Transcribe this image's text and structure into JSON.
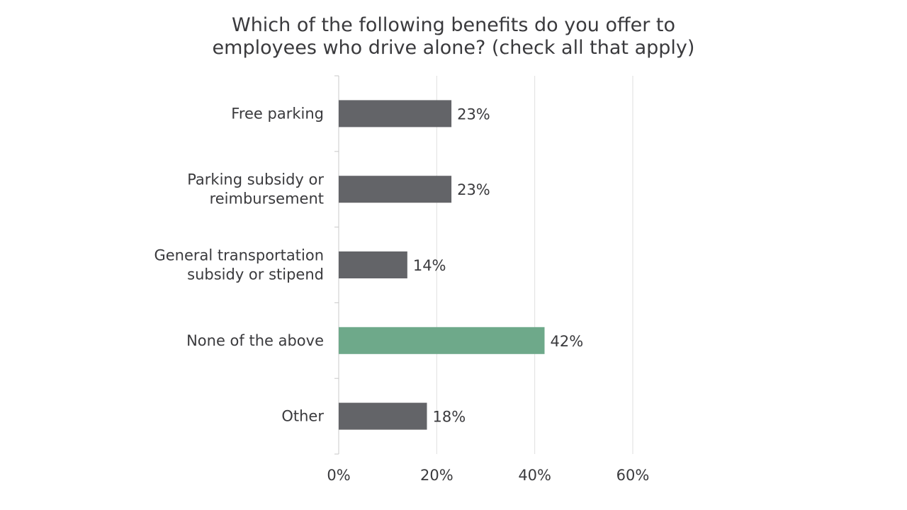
{
  "chart_data": {
    "type": "bar",
    "orientation": "horizontal",
    "title": [
      "Which of the following benefits do you offer to",
      "employees who drive alone? (check all that apply)"
    ],
    "categories": [
      [
        "Free parking"
      ],
      [
        "Parking subsidy or",
        "reimbursement"
      ],
      [
        "General  transportation",
        "subsidy or stipend"
      ],
      [
        "None of the above"
      ],
      [
        "Other"
      ]
    ],
    "values": [
      23,
      23,
      14,
      42,
      18
    ],
    "value_labels": [
      "23%",
      "23%",
      "14%",
      "42%",
      "18%"
    ],
    "xlim": [
      0,
      60
    ],
    "xticks": [
      0,
      20,
      40,
      60
    ],
    "xtick_labels": [
      "0%",
      "20%",
      "40%",
      "60%"
    ],
    "grid": true,
    "legend": "none",
    "colors": {
      "default_bar": "#636468",
      "highlight_bar": "#6ea98a",
      "text": "#3a3a3d",
      "grid": "#dedede",
      "axis": "#c8c8c8"
    },
    "highlight_index": 3
  }
}
